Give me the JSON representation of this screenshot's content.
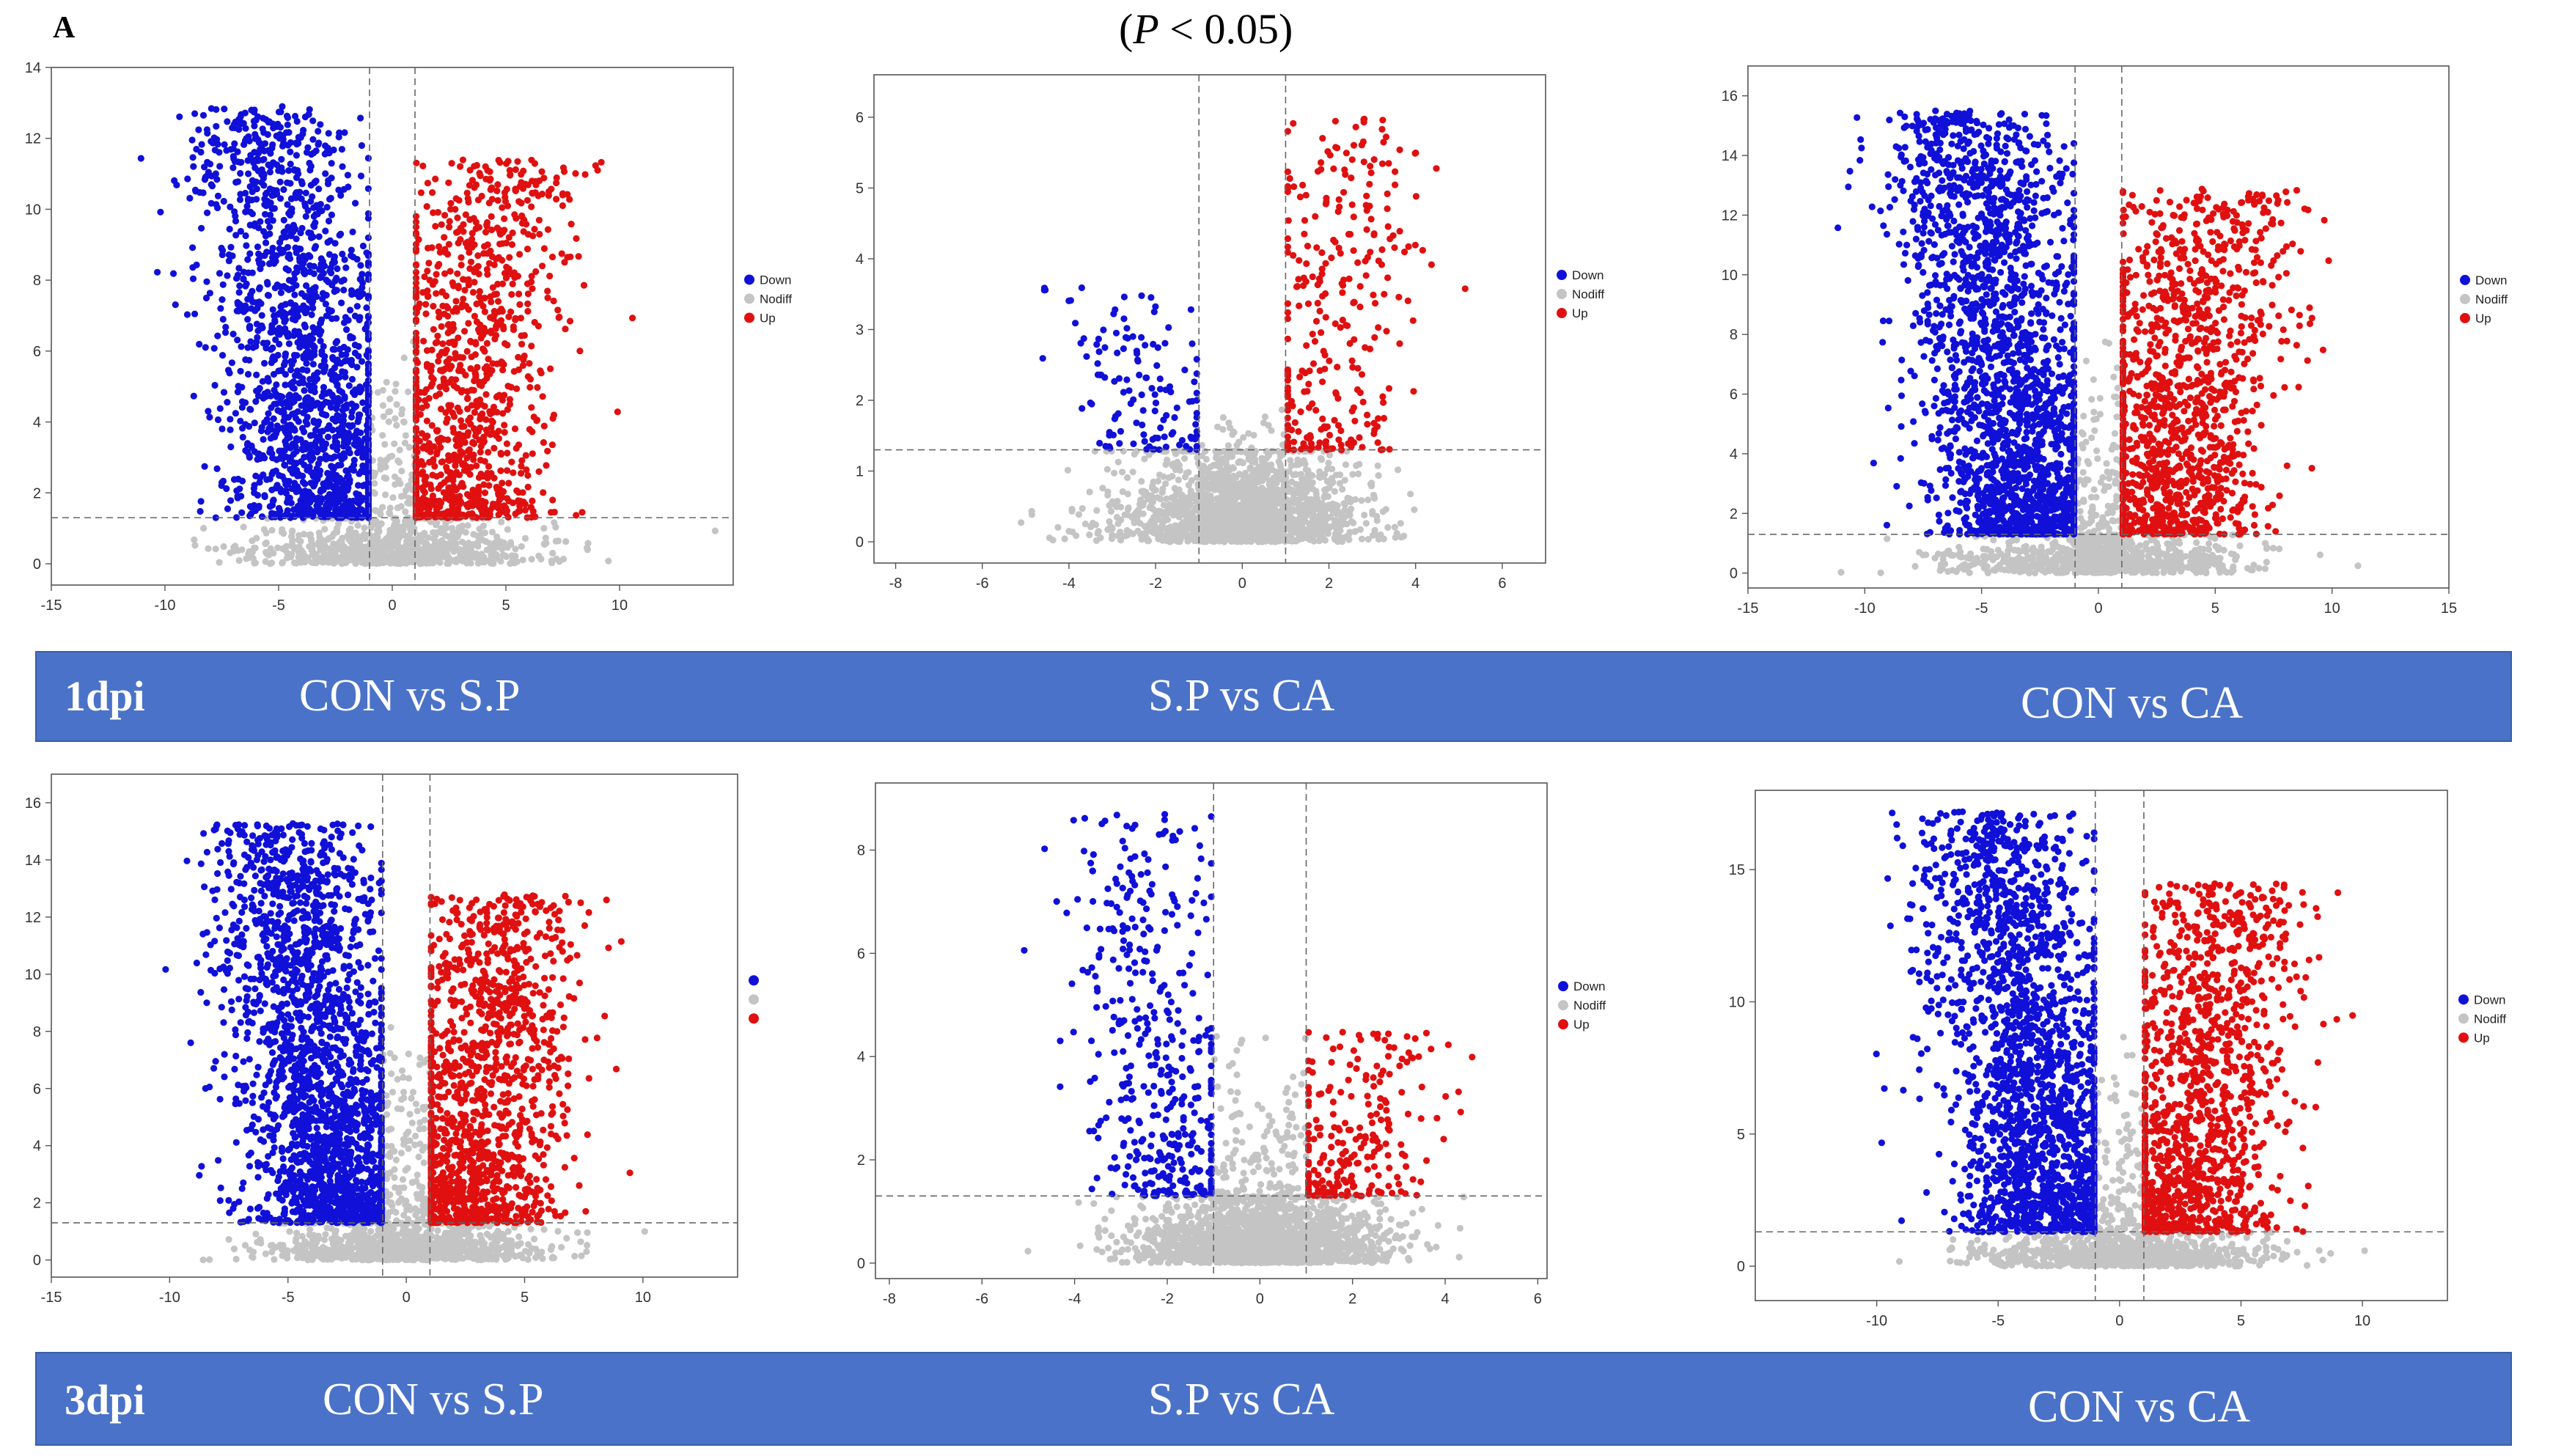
{
  "figure": {
    "panel_label": "A",
    "significance_note": "(P < 0.05)",
    "significance_p": "P",
    "significance_rest": " < 0.05)",
    "significance_open": "(",
    "rows": [
      {
        "day_label": "1dpi",
        "comparisons": [
          "CON vs S.P",
          "S.P vs CA",
          "CON vs CA"
        ]
      },
      {
        "day_label": "3dpi",
        "comparisons": [
          "CON vs S.P",
          "S.P vs CA",
          "CON vs CA"
        ]
      }
    ]
  },
  "colors": {
    "down": "#1010d8",
    "nodiff": "#c4c4c4",
    "up": "#e01010",
    "band": "#4a72c8"
  },
  "chart_data": [
    {
      "type": "scatter",
      "title": "CON vs S.P (1dpi)",
      "xlim": [
        -15,
        15
      ],
      "ylim": [
        -0.6,
        14
      ],
      "xticks": [
        -15,
        -10,
        -5,
        0,
        5,
        10
      ],
      "yticks": [
        0,
        2,
        4,
        6,
        8,
        10,
        12,
        14
      ],
      "fc_threshold": [
        -1,
        1
      ],
      "p_threshold": 1.3,
      "legend": [
        "Down",
        "Nodiff",
        "Up"
      ],
      "legend_position": "right",
      "counts": {
        "down": 1700,
        "up": 1100,
        "nodiff": 700
      },
      "down_ymax": 12.9,
      "up_ymax": 11.4,
      "xspread": 14,
      "seed": 11
    },
    {
      "type": "scatter",
      "title": "S.P vs CA (1dpi)",
      "xlim": [
        -8.5,
        7
      ],
      "ylim": [
        -0.3,
        6.6
      ],
      "xticks": [
        -8,
        -6,
        -4,
        -2,
        0,
        2,
        4,
        6
      ],
      "yticks": [
        0,
        1,
        2,
        3,
        4,
        5,
        6
      ],
      "fc_threshold": [
        -1,
        1
      ],
      "p_threshold": 1.3,
      "legend": [
        "Down",
        "Nodiff",
        "Up"
      ],
      "legend_position": "right",
      "counts": {
        "down": 130,
        "up": 290,
        "nodiff": 1500
      },
      "down_ymax": 3.6,
      "up_ymax": 6.0,
      "xspread": 6.5,
      "seed": 22
    },
    {
      "type": "scatter",
      "title": "CON vs CA (1dpi)",
      "xlim": [
        -15,
        15
      ],
      "ylim": [
        -0.5,
        17
      ],
      "xticks": [
        -15,
        -10,
        -5,
        0,
        5,
        10,
        15
      ],
      "yticks": [
        0,
        2,
        4,
        6,
        8,
        10,
        12,
        14,
        16
      ],
      "fc_threshold": [
        -1,
        1
      ],
      "p_threshold": 1.3,
      "legend": [
        "Down",
        "Nodiff",
        "Up"
      ],
      "legend_position": "right",
      "counts": {
        "down": 2200,
        "up": 1300,
        "nodiff": 800
      },
      "down_ymax": 15.5,
      "up_ymax": 12.9,
      "xspread": 14,
      "seed": 33
    },
    {
      "type": "scatter",
      "title": "CON vs S.P (3dpi)",
      "xlim": [
        -15,
        14
      ],
      "ylim": [
        -0.6,
        17
      ],
      "xticks": [
        -15,
        -10,
        -5,
        0,
        5,
        10
      ],
      "yticks": [
        0,
        2,
        4,
        6,
        8,
        10,
        12,
        14,
        16
      ],
      "fc_threshold": [
        -1,
        1
      ],
      "p_threshold": 1.3,
      "legend": [
        "",
        "",
        ""
      ],
      "legend_position": "right",
      "counts": {
        "down": 2100,
        "up": 1300,
        "nodiff": 900
      },
      "down_ymax": 15.3,
      "up_ymax": 12.8,
      "xspread": 13,
      "seed": 44
    },
    {
      "type": "scatter",
      "title": "S.P vs CA (3dpi)",
      "xlim": [
        -8.3,
        6.2
      ],
      "ylim": [
        -0.3,
        9.3
      ],
      "xticks": [
        -8,
        -6,
        -4,
        -2,
        0,
        2,
        4,
        6
      ],
      "yticks": [
        0,
        2,
        4,
        6,
        8
      ],
      "fc_threshold": [
        -1,
        1
      ],
      "p_threshold": 1.3,
      "legend": [
        "Down",
        "Nodiff",
        "Up"
      ],
      "legend_position": "right",
      "counts": {
        "down": 420,
        "up": 240,
        "nodiff": 1600
      },
      "down_ymax": 8.7,
      "up_ymax": 4.5,
      "xspread": 6,
      "seed": 55
    },
    {
      "type": "scatter",
      "title": "CON vs CA (3dpi)",
      "xlim": [
        -15,
        13.5
      ],
      "ylim": [
        -1.3,
        18
      ],
      "xticks": [
        -10,
        -5,
        0,
        5,
        10
      ],
      "yticks": [
        0,
        5,
        10,
        15
      ],
      "fc_threshold": [
        -1,
        1
      ],
      "p_threshold": 1.3,
      "legend": [
        "Down",
        "Nodiff",
        "Up"
      ],
      "legend_position": "right",
      "counts": {
        "down": 2000,
        "up": 1300,
        "nodiff": 800
      },
      "down_ymax": 17.2,
      "up_ymax": 14.5,
      "xspread": 13,
      "seed": 66
    }
  ]
}
